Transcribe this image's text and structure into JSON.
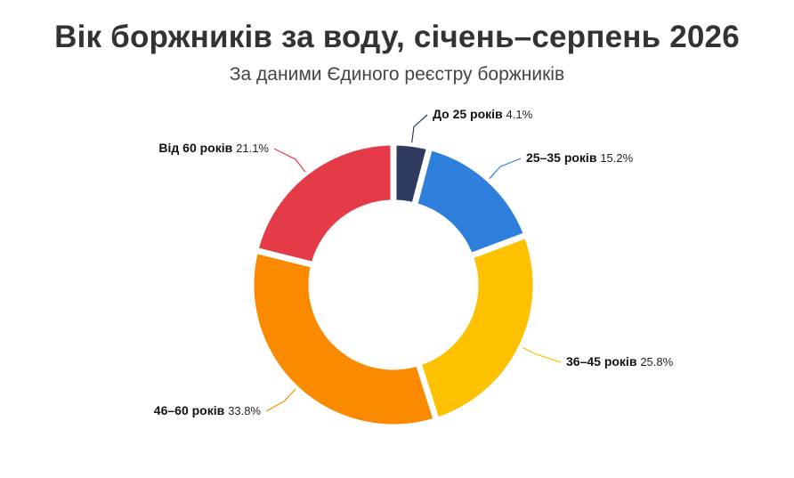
{
  "header": {
    "title": "Вік боржників за воду, січень–серпень 2026",
    "subtitle": "За даними Єдиного реєстру боржників"
  },
  "chart_data": {
    "type": "pie",
    "title": "Вік боржників за воду, січень–серпень 2026",
    "subtitle": "За даними Єдиного реєстру боржників",
    "unit": "%",
    "donut": true,
    "categories": [
      "До 25 років",
      "25–35 років",
      "36–45 років",
      "46–60 років",
      "Від 60 років"
    ],
    "values": [
      4.1,
      15.2,
      25.8,
      33.8,
      21.1
    ],
    "value_labels": [
      "4.1%",
      "15.2%",
      "25.8%",
      "33.8%",
      "21.1%"
    ],
    "colors": [
      "#2e3b5e",
      "#2d7fdb",
      "#fdc100",
      "#fb8a00",
      "#e53a48"
    ],
    "legend": "none (labels on slices)"
  }
}
